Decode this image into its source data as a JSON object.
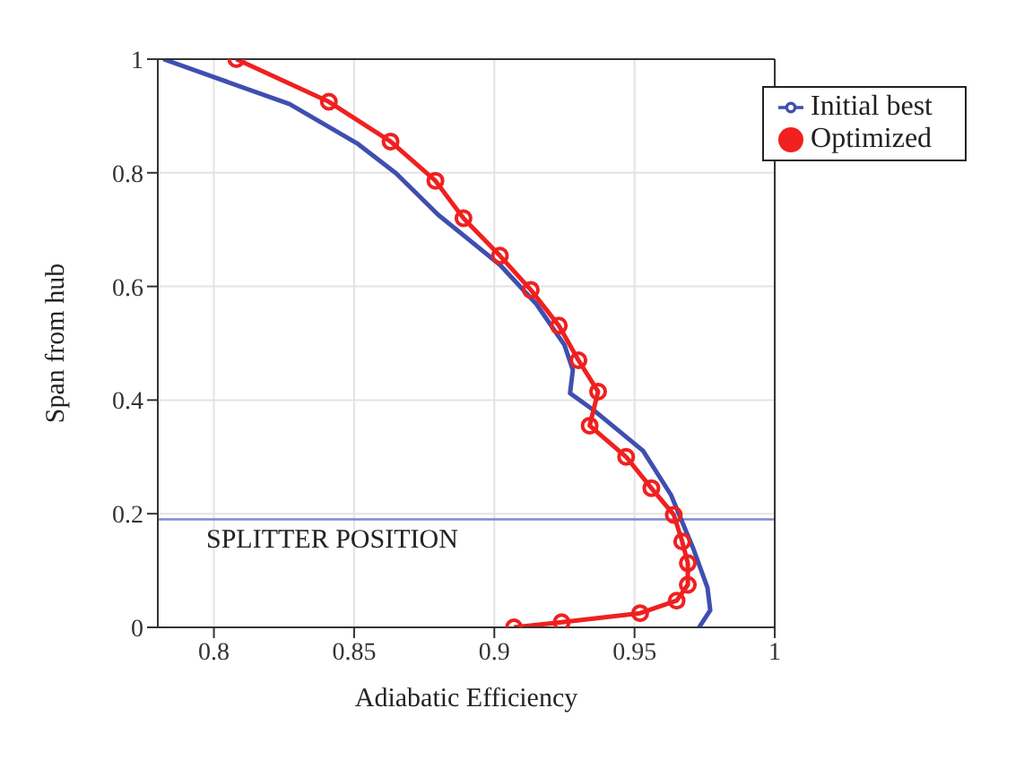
{
  "chart_data": {
    "type": "line",
    "xlabel": "Adiabatic Efficiency",
    "ylabel": "Span from hub",
    "xlim": [
      0.78,
      1
    ],
    "xticks": [
      0.8,
      0.85,
      0.9,
      0.95,
      1
    ],
    "ylim": [
      0,
      1
    ],
    "yticks": [
      0,
      0.2,
      0.4,
      0.6,
      0.8,
      1
    ],
    "grid": true,
    "legend": "top right",
    "ref_lines": [
      {
        "axis": "y",
        "value": 0.19,
        "label": "SPLITTER POSITION",
        "color": "#7b8ad6"
      }
    ],
    "series": [
      {
        "name": "Initial best",
        "color": "#3f4fb0",
        "marker": "none",
        "x": [
          0.782,
          0.827,
          0.851,
          0.865,
          0.88,
          0.902,
          0.915,
          0.925,
          0.928,
          0.927,
          0.936,
          0.953,
          0.963,
          0.971,
          0.976,
          0.977,
          0.973
        ],
        "values": [
          1,
          0.921,
          0.852,
          0.799,
          0.726,
          0.638,
          0.569,
          0.497,
          0.453,
          0.412,
          0.38,
          0.311,
          0.233,
          0.138,
          0.07,
          0.03,
          0
        ]
      },
      {
        "name": "Optimized",
        "color": "#f02020",
        "marker": "circle",
        "x": [
          0.808,
          0.841,
          0.863,
          0.879,
          0.889,
          0.902,
          0.913,
          0.923,
          0.93,
          0.937,
          0.934,
          0.947,
          0.956,
          0.964,
          0.967,
          0.969,
          0.969,
          0.965,
          0.952,
          0.924,
          0.907
        ],
        "values": [
          1,
          0.925,
          0.855,
          0.786,
          0.72,
          0.654,
          0.594,
          0.531,
          0.47,
          0.415,
          0.355,
          0.3,
          0.245,
          0.198,
          0.151,
          0.113,
          0.075,
          0.047,
          0.025,
          0.009,
          0
        ]
      }
    ]
  }
}
